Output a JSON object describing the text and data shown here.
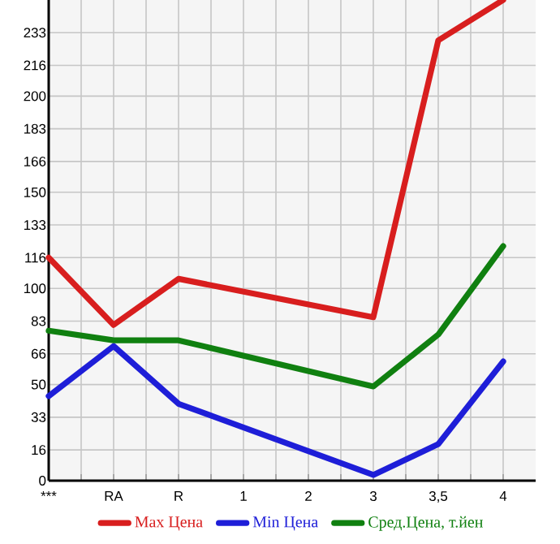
{
  "chart_data": {
    "type": "line",
    "categories": [
      "***",
      "RA",
      "R",
      "1",
      "2",
      "3",
      "3,5",
      "4"
    ],
    "series": [
      {
        "name": "Max Цена",
        "color": "#d81e1e",
        "values": [
          116,
          81,
          105,
          null,
          null,
          85,
          229,
          250
        ]
      },
      {
        "name": "Min Цена",
        "color": "#1e1ed8",
        "values": [
          44,
          70,
          40,
          null,
          null,
          3,
          19,
          62
        ]
      },
      {
        "name": "Сред.Цена, т.йен",
        "color": "#108010",
        "values": [
          78,
          73,
          73,
          null,
          null,
          49,
          76,
          122
        ]
      }
    ],
    "ylim": [
      0,
      250
    ],
    "yticks": [
      0,
      16,
      33,
      50,
      66,
      83,
      100,
      116,
      133,
      150,
      166,
      183,
      200,
      216,
      233
    ],
    "grid": true,
    "legend": "bottom",
    "marker": "none",
    "line_style": "solid"
  }
}
